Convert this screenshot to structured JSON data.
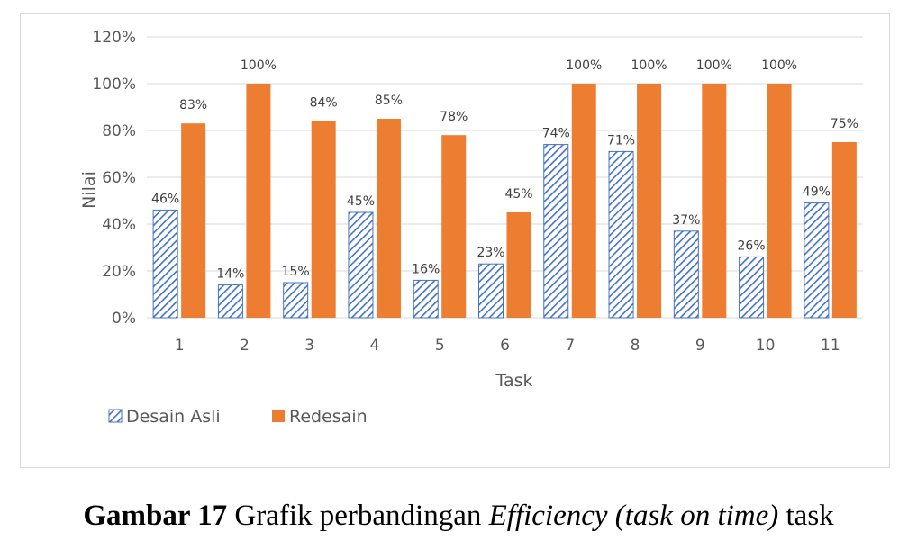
{
  "colors": {
    "series1_stroke": "#4472c4",
    "series2_fill": "#ed7d31",
    "grid": "#d9d9d9",
    "text": "#595959"
  },
  "chart_data": {
    "type": "bar",
    "categories": [
      "1",
      "2",
      "3",
      "4",
      "5",
      "6",
      "7",
      "8",
      "9",
      "10",
      "11"
    ],
    "series": [
      {
        "name": "Desain Asli",
        "values": [
          46,
          14,
          15,
          45,
          16,
          23,
          74,
          71,
          37,
          26,
          49
        ],
        "labels": [
          "46%",
          "14%",
          "15%",
          "45%",
          "16%",
          "23%",
          "74%",
          "71%",
          "37%",
          "26%",
          "49%"
        ],
        "pattern": "diagonal-hatch",
        "color": "#4472c4"
      },
      {
        "name": "Redesain",
        "values": [
          83,
          100,
          84,
          85,
          78,
          45,
          100,
          100,
          100,
          100,
          75
        ],
        "labels": [
          "83%",
          "100%",
          "84%",
          "85%",
          "78%",
          "45%",
          "100%",
          "100%",
          "100%",
          "100%",
          "75%"
        ],
        "pattern": "solid",
        "color": "#ed7d31"
      }
    ],
    "title": "",
    "xlabel": "Task",
    "ylabel": "Nilai",
    "ylim": [
      0,
      120
    ],
    "yticks": [
      0,
      20,
      40,
      60,
      80,
      100,
      120
    ],
    "ytick_labels": [
      "0%",
      "20%",
      "40%",
      "60%",
      "80%",
      "100%",
      "120%"
    ],
    "grid": true,
    "legend_position": "bottom-left"
  },
  "caption": {
    "label": "Gambar 17",
    "text_before": " Grafik perbandingan ",
    "italic": "Efficiency (task on time)",
    "text_after": " task"
  }
}
